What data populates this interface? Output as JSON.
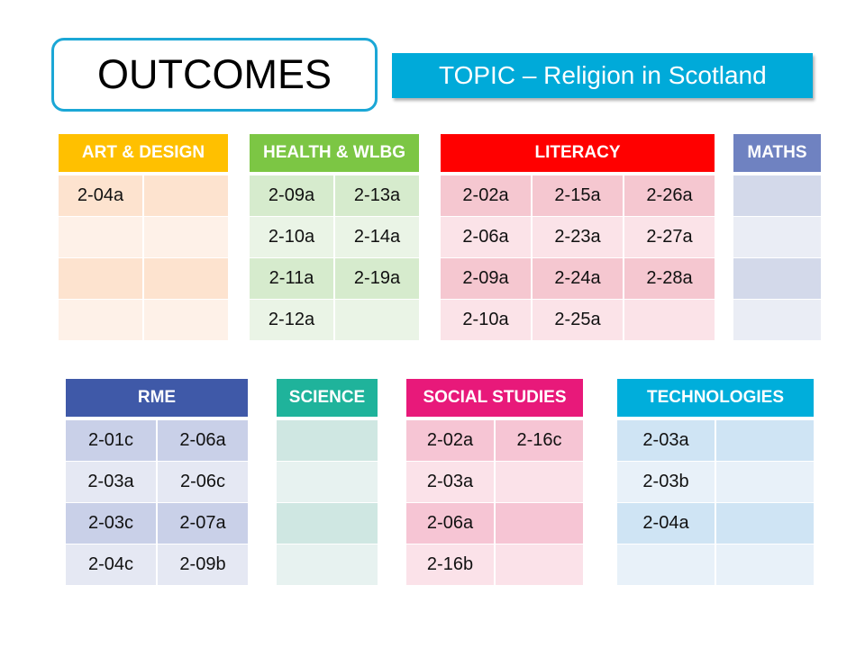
{
  "title": "OUTCOMES",
  "topic": "TOPIC – Religion in Scotland",
  "tables": [
    {
      "id": "art-design",
      "label": "ART & DESIGN",
      "header_color": "#FFC000",
      "row_colors": [
        "#FDE3CF",
        "#FEF1E8"
      ],
      "rows": [
        [
          "2-04a",
          ""
        ],
        [
          "",
          ""
        ],
        [
          "",
          ""
        ],
        [
          "",
          ""
        ]
      ]
    },
    {
      "id": "health-wlbg",
      "label": "HEALTH & WLBG",
      "header_color": "#7CC644",
      "row_colors": [
        "#D6EBCD",
        "#EAF4E6"
      ],
      "rows": [
        [
          "2-09a",
          "2-13a"
        ],
        [
          "2-10a",
          "2-14a"
        ],
        [
          "2-11a",
          "2-19a"
        ],
        [
          "2-12a",
          ""
        ]
      ]
    },
    {
      "id": "literacy",
      "label": "LITERACY",
      "header_color": "#FF0000",
      "row_colors": [
        "#F5C7D0",
        "#FBE3E8"
      ],
      "rows": [
        [
          "2-02a",
          "2-15a",
          "2-26a"
        ],
        [
          "2-06a",
          "2-23a",
          "2-27a"
        ],
        [
          "2-09a",
          "2-24a",
          "2-28a"
        ],
        [
          "2-10a",
          "2-25a",
          ""
        ]
      ]
    },
    {
      "id": "maths",
      "label": "MATHS",
      "header_color": "#6F82C1",
      "row_colors": [
        "#D3D9EA",
        "#EAEDF5"
      ],
      "rows": [
        [
          ""
        ],
        [
          ""
        ],
        [
          ""
        ],
        [
          ""
        ]
      ]
    },
    {
      "id": "rme",
      "label": "RME",
      "header_color": "#3F59A8",
      "row_colors": [
        "#C9D0E8",
        "#E5E8F3"
      ],
      "rows": [
        [
          "2-01c",
          "2-06a"
        ],
        [
          "2-03a",
          "2-06c"
        ],
        [
          "2-03c",
          "2-07a"
        ],
        [
          "2-04c",
          "2-09b"
        ]
      ]
    },
    {
      "id": "science",
      "label": "SCIENCE",
      "header_color": "#1FB39B",
      "row_colors": [
        "#CFE7E2",
        "#E7F2F0"
      ],
      "rows": [
        [
          ""
        ],
        [
          ""
        ],
        [
          ""
        ],
        [
          ""
        ]
      ]
    },
    {
      "id": "social-studies",
      "label": "SOCIAL STUDIES",
      "header_color": "#E8197A",
      "row_colors": [
        "#F6C5D4",
        "#FBE2E9"
      ],
      "rows": [
        [
          "2-02a",
          "2-16c"
        ],
        [
          "2-03a",
          ""
        ],
        [
          "2-06a",
          ""
        ],
        [
          "2-16b",
          ""
        ]
      ]
    },
    {
      "id": "technologies",
      "label": "TECHNOLOGIES",
      "header_color": "#00AEDB",
      "row_colors": [
        "#CFE4F4",
        "#E8F1F9"
      ],
      "rows": [
        [
          "2-03a",
          ""
        ],
        [
          "2-03b",
          ""
        ],
        [
          "2-04a",
          ""
        ],
        [
          "",
          ""
        ]
      ]
    }
  ]
}
